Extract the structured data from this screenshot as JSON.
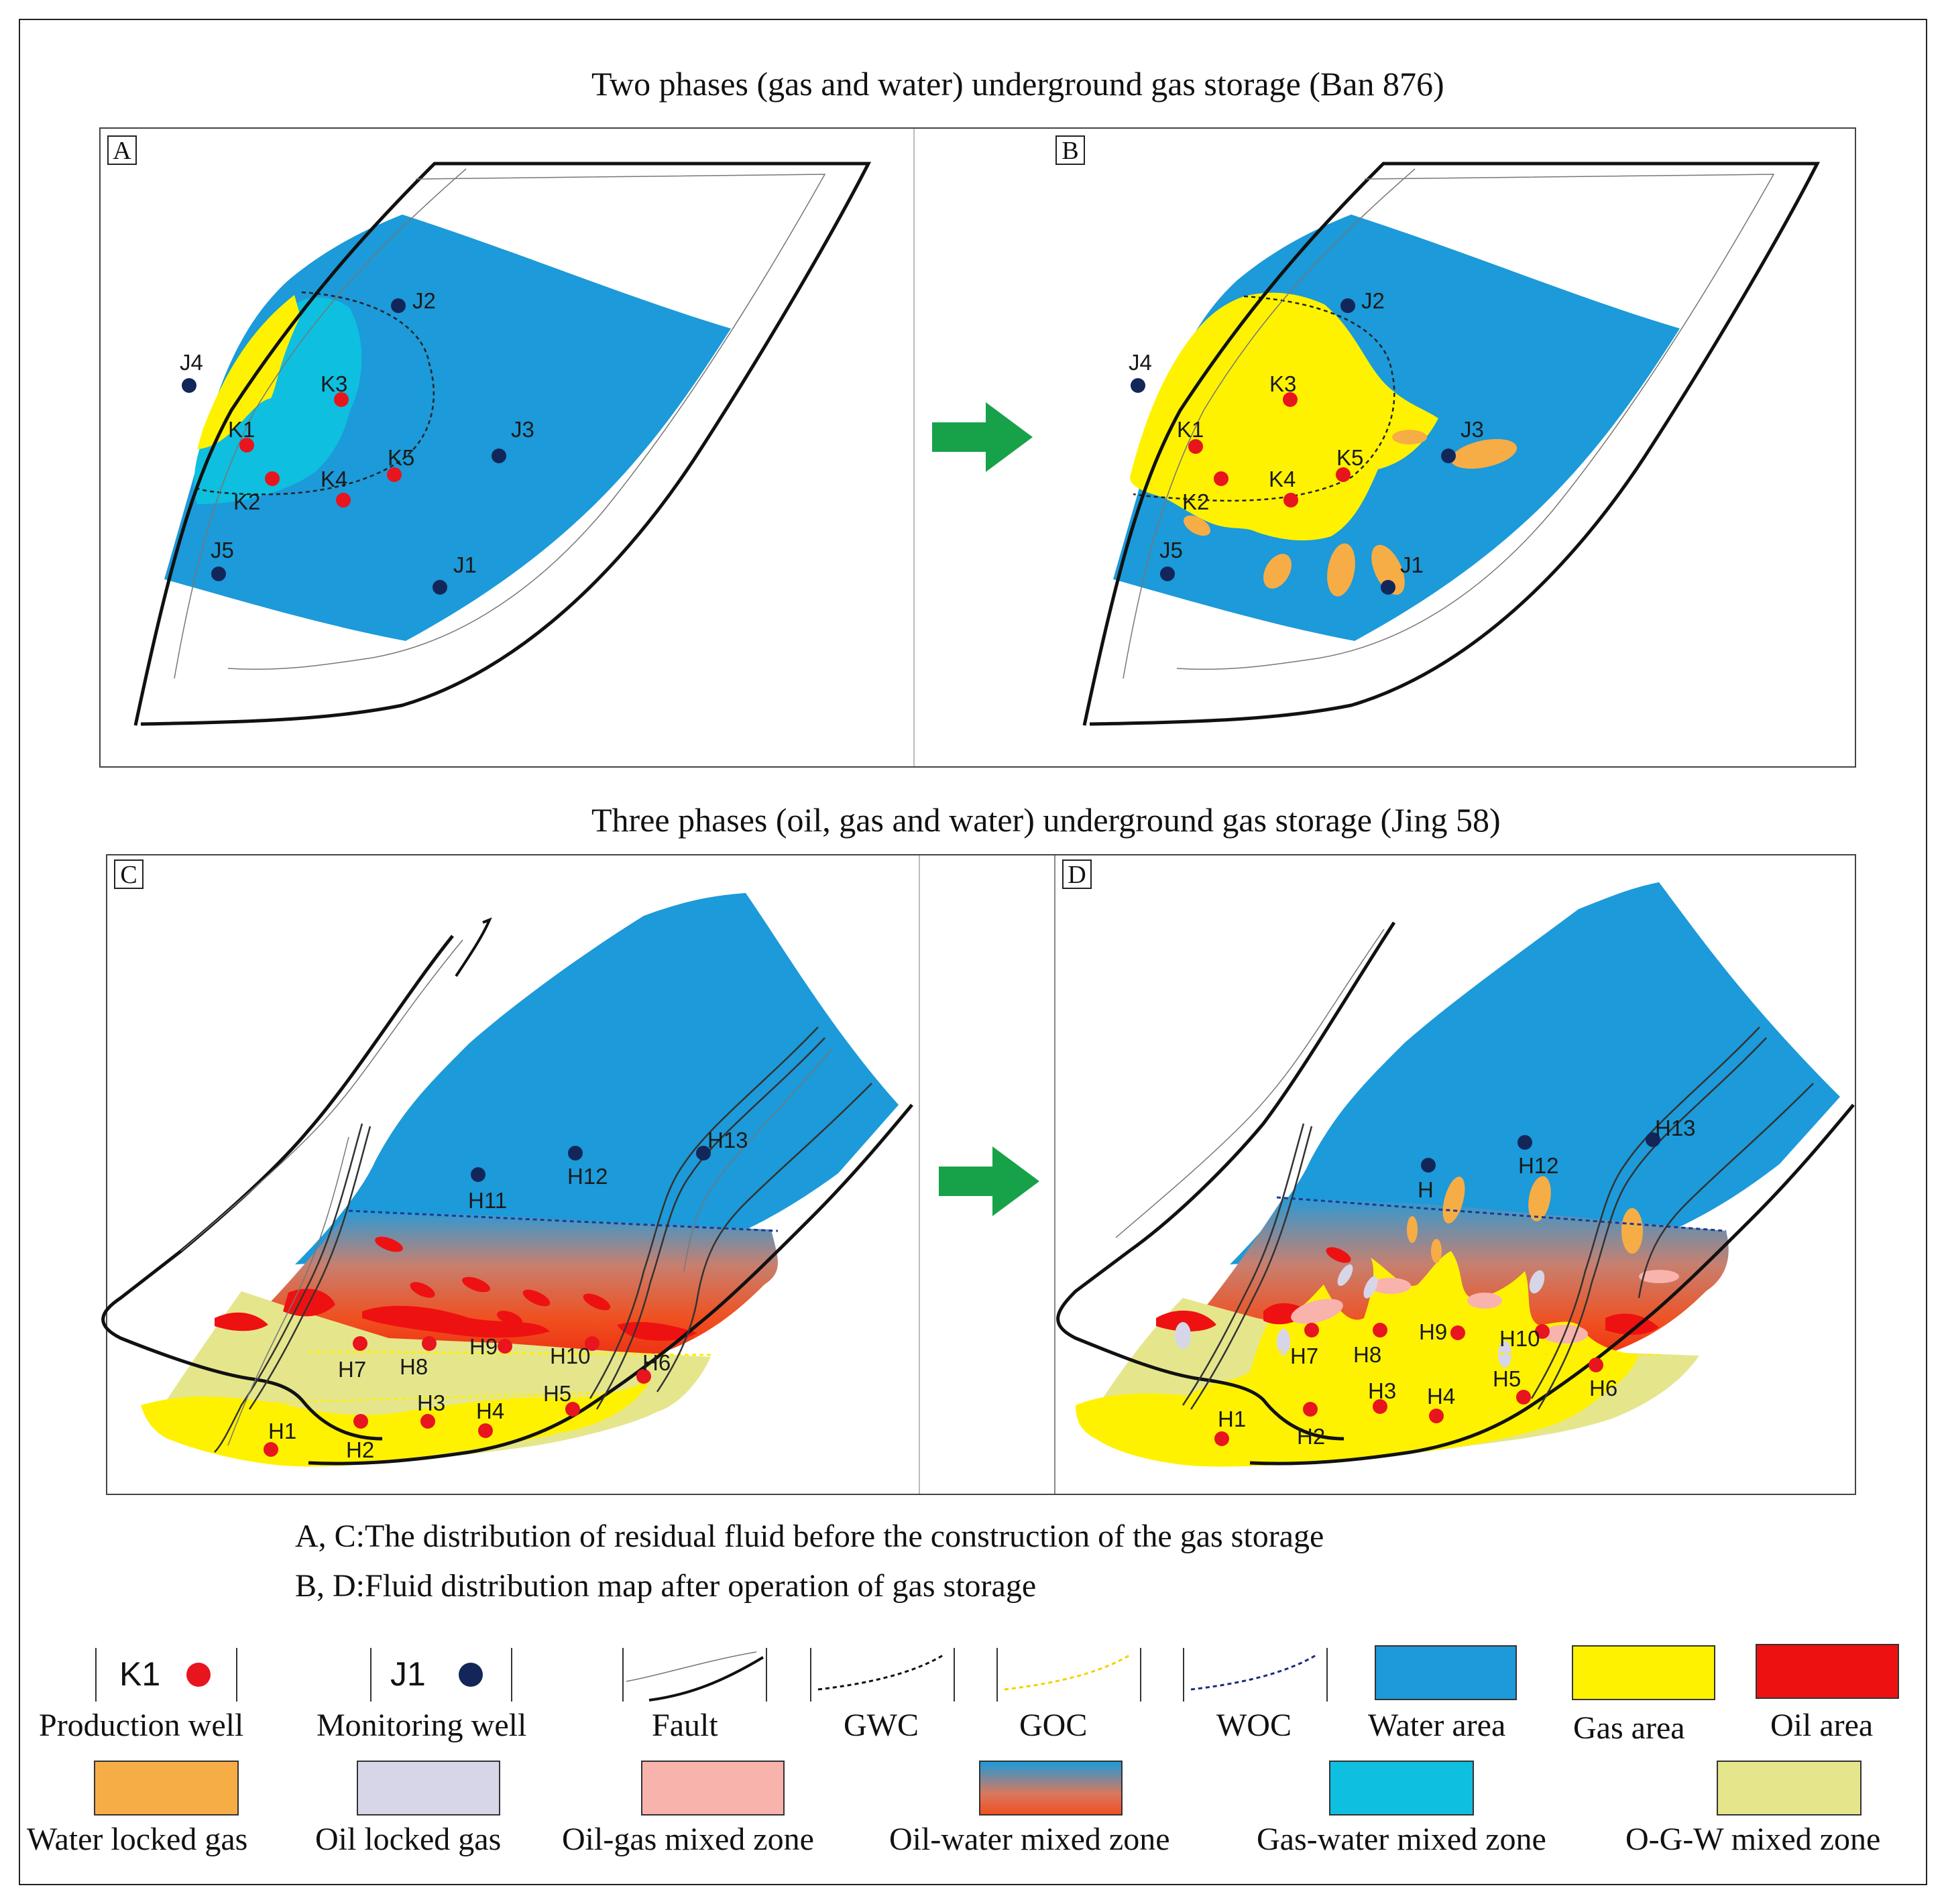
{
  "titles": {
    "top": "Two phases (gas and water) underground gas storage (Ban 876)",
    "bottom": "Three phases (oil, gas and water) underground gas storage (Jing 58)"
  },
  "panels": {
    "a": {
      "label": "A"
    },
    "b": {
      "label": "B"
    },
    "c": {
      "label": "C"
    },
    "d": {
      "label": "D"
    }
  },
  "wells": {
    "a": [
      "J2",
      "J4",
      "K3",
      "K1",
      "K5",
      "J3",
      "K4",
      "K2",
      "J5",
      "J1"
    ],
    "b": [
      "J2",
      "J4",
      "K3",
      "K1",
      "J3",
      "K5",
      "K4",
      "K2",
      "J5",
      "J1"
    ],
    "c": [
      "H11",
      "H12",
      "H13",
      "H9",
      "H10",
      "H7",
      "H8",
      "H6",
      "H5",
      "H3",
      "H4",
      "H1",
      "H2"
    ],
    "d": [
      "H12",
      "H13",
      "H",
      "H9",
      "H10",
      "H7",
      "H8",
      "H3",
      "H5",
      "H4",
      "H1",
      "H2",
      "H6"
    ]
  },
  "captions": {
    "line1": "A, C:The distribution of residual fluid before the construction of the gas storage",
    "line2": "B, D:Fluid distribution map after operation of gas storage"
  },
  "legend": {
    "production_well": {
      "symbol": "K1",
      "label": "Production well"
    },
    "monitoring_well": {
      "symbol": "J1",
      "label": "Monitoring well"
    },
    "fault": "Fault",
    "gwc": "GWC",
    "goc": "GOC",
    "woc": "WOC",
    "water_area": "Water area",
    "gas_area": "Gas area",
    "oil_area": "Oil area",
    "water_locked_gas": "Water locked gas",
    "oil_locked_gas": "Oil locked gas",
    "oil_gas_mixed": "Oil-gas mixed zone",
    "oil_water_mixed": "Oil-water mixed zone",
    "gas_water_mixed": "Gas-water mixed zone",
    "ogw_mixed": "O-G-W mixed zone"
  },
  "colors": {
    "water": "#1c9ad9",
    "gas": "#fff200",
    "oil": "#ee1111",
    "water_locked_gas": "#f7ad45",
    "oil_locked_gas": "#d6d6e8",
    "oil_gas_mixed": "#f8b3ad",
    "gas_water_mixed": "#0ebfe0",
    "ogw_mixed": "#e5e68c",
    "production_well": "#e8141e",
    "monitoring_well": "#132659",
    "arrow": "#17a24a"
  }
}
